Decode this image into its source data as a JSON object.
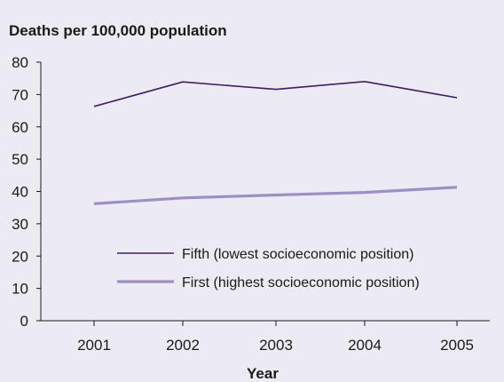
{
  "chart_data": {
    "type": "line",
    "title": "Deaths per 100,000 population",
    "xlabel": "Year",
    "ylabel": "",
    "categories": [
      "2001",
      "2002",
      "2003",
      "2004",
      "2005"
    ],
    "ylim": [
      0,
      80
    ],
    "yticks": [
      0,
      10,
      20,
      30,
      40,
      50,
      60,
      70,
      80
    ],
    "grid": false,
    "legend_position": "center",
    "series": [
      {
        "name": "Fifth (lowest socioeconomic position)",
        "values": [
          66.3,
          73.9,
          71.6,
          74.0,
          69.0
        ],
        "color": "#3d1f63"
      },
      {
        "name": "First (highest socioeconomic position)",
        "values": [
          36.2,
          38.0,
          38.9,
          39.7,
          41.3
        ],
        "color": "#9f8ec4"
      }
    ]
  }
}
